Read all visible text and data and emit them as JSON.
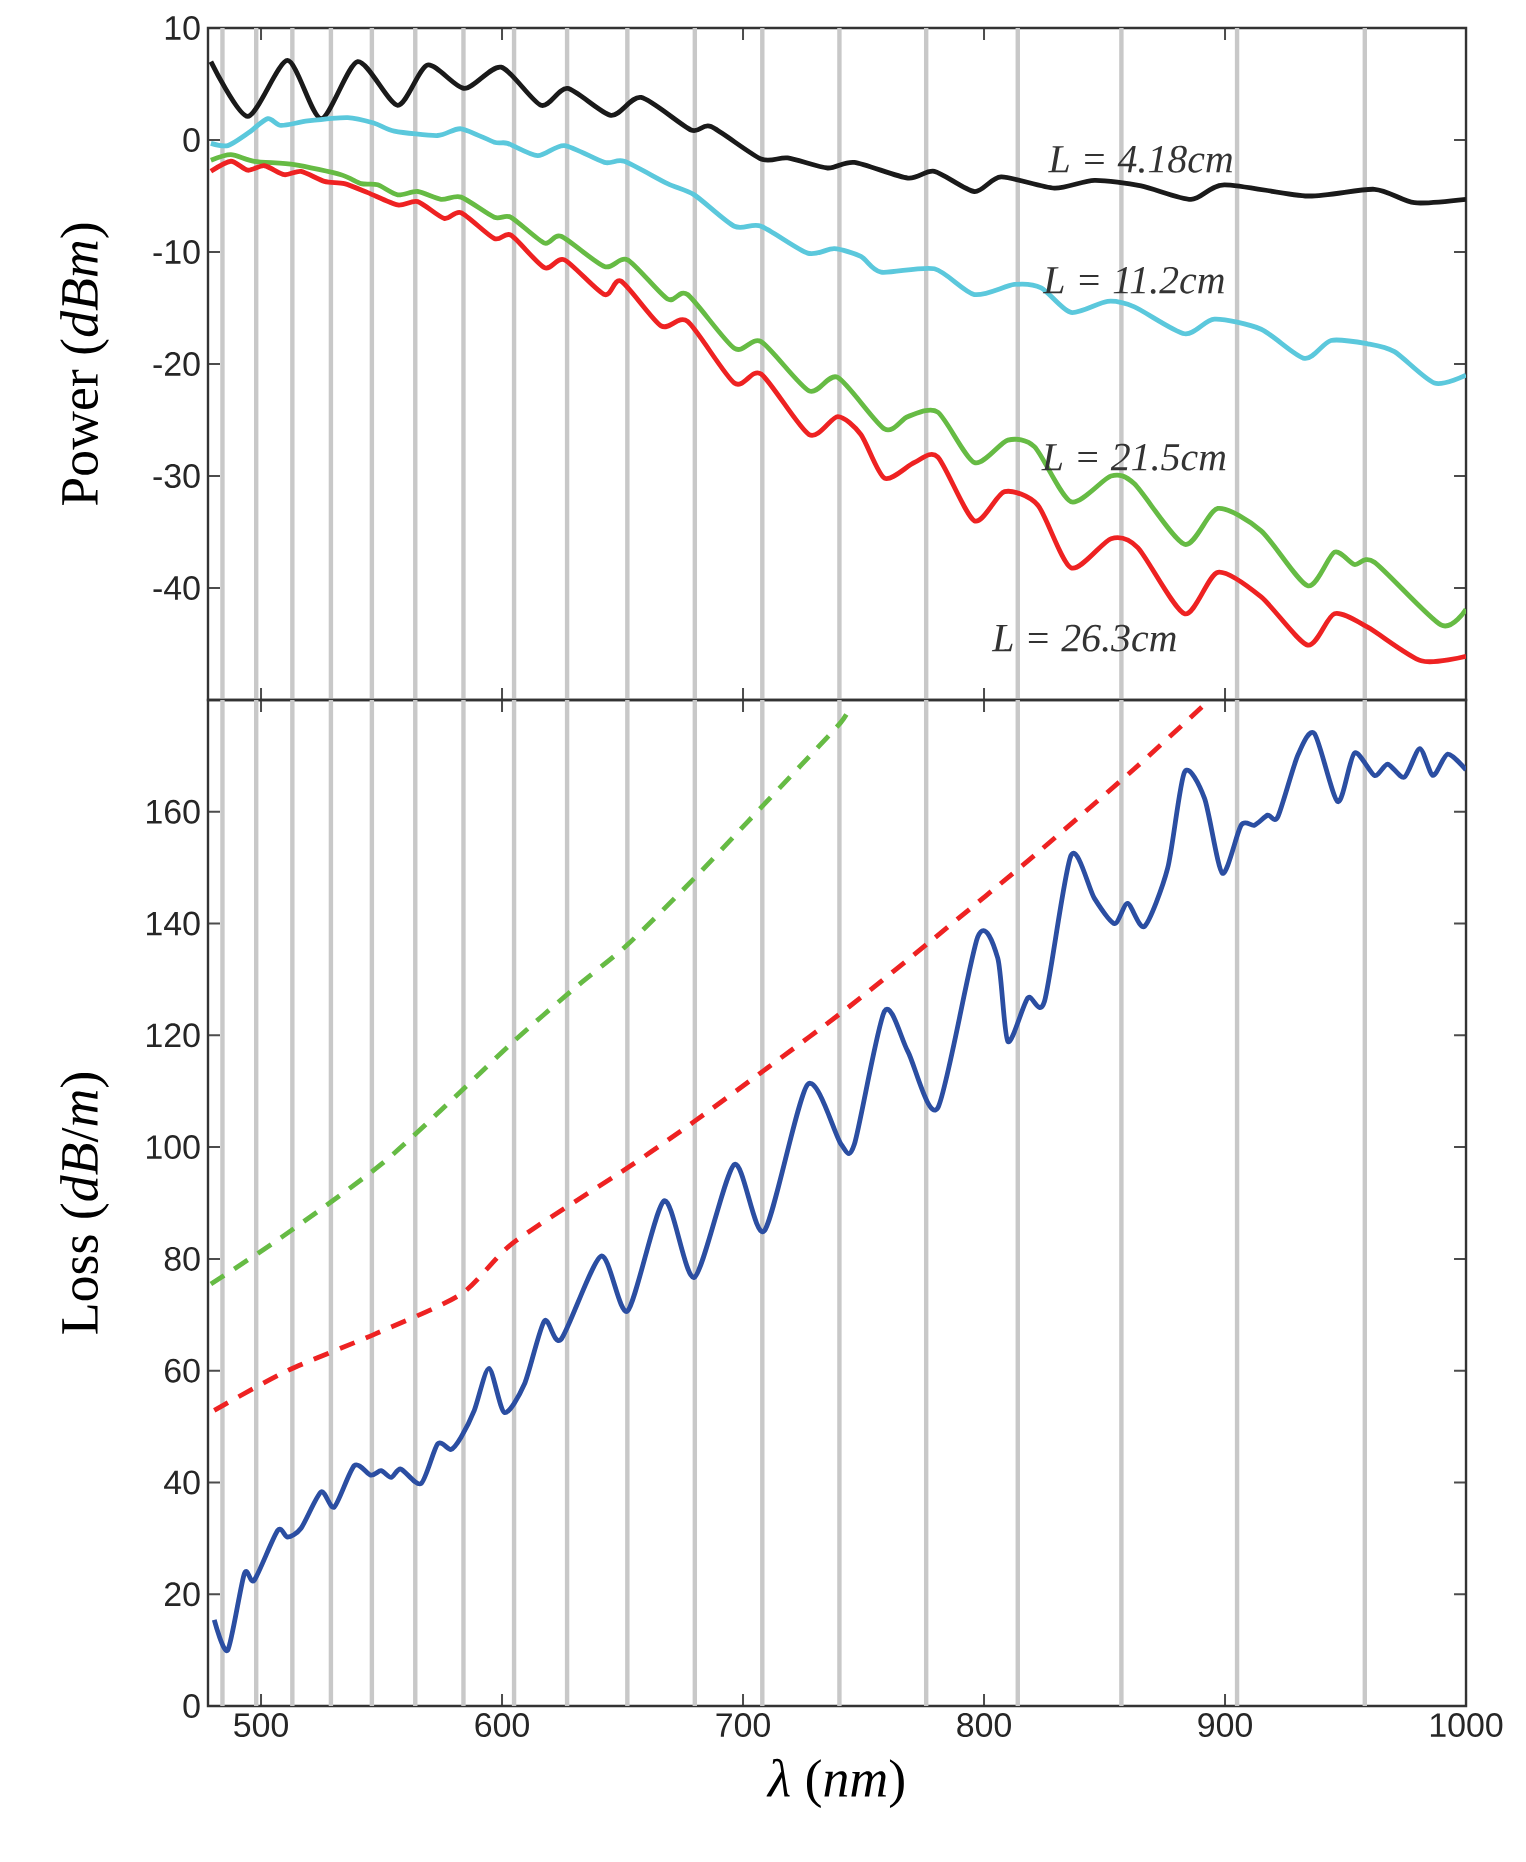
{
  "chart_data": [
    {
      "type": "line",
      "ylabel": "Power (*dBm*)",
      "xlim": [
        478,
        1000
      ],
      "xticks": [
        500,
        600,
        700,
        800,
        900,
        1000
      ],
      "ylim": [
        -50,
        10
      ],
      "yticks": [
        -40,
        -30,
        -20,
        -10,
        0,
        10
      ],
      "tick_labels": "y",
      "ref_lines": [
        {
          "axis": "x",
          "value": 484,
          "color": "#c8c8c8"
        },
        {
          "axis": "x",
          "value": 498,
          "color": "#c8c8c8"
        },
        {
          "axis": "x",
          "value": 513,
          "color": "#c8c8c8"
        },
        {
          "axis": "x",
          "value": 529,
          "color": "#c8c8c8"
        },
        {
          "axis": "x",
          "value": 546,
          "color": "#c8c8c8"
        },
        {
          "axis": "x",
          "value": 564,
          "color": "#c8c8c8"
        },
        {
          "axis": "x",
          "value": 584,
          "color": "#c8c8c8"
        },
        {
          "axis": "x",
          "value": 605,
          "color": "#c8c8c8"
        },
        {
          "axis": "x",
          "value": 627,
          "color": "#c8c8c8"
        },
        {
          "axis": "x",
          "value": 652,
          "color": "#c8c8c8"
        },
        {
          "axis": "x",
          "value": 680,
          "color": "#c8c8c8"
        },
        {
          "axis": "x",
          "value": 708,
          "color": "#c8c8c8"
        },
        {
          "axis": "x",
          "value": 740,
          "color": "#c8c8c8"
        },
        {
          "axis": "x",
          "value": 776,
          "color": "#c8c8c8"
        },
        {
          "axis": "x",
          "value": 814,
          "color": "#c8c8c8"
        },
        {
          "axis": "x",
          "value": 857,
          "color": "#c8c8c8"
        },
        {
          "axis": "x",
          "value": 905,
          "color": "#c8c8c8"
        },
        {
          "axis": "x",
          "value": 958,
          "color": "#c8c8c8"
        }
      ],
      "series": [
        {
          "name": "L = 4.18cm",
          "color": "#1a1a1a",
          "line_style": "solid",
          "x": [
            479.2,
            494.5,
            511,
            524.9,
            540.1,
            556.7,
            569.1,
            584.4,
            599.6,
            616.2,
            627.2,
            645.2,
            657.7,
            678.4,
            686.7,
            707.5,
            718.5,
            735.1,
            746.2,
            768.4,
            779.4,
            796,
            807.1,
            829.2,
            845.8,
            865.2,
            885.9,
            899.7,
            934.3,
            962,
            978.6,
            1000
          ],
          "values": [
            7.0,
            2.1,
            7.1,
            1.9,
            7.0,
            3.1,
            6.7,
            4.6,
            6.5,
            3.1,
            4.6,
            2.2,
            3.8,
            0.9,
            1.2,
            -1.7,
            -1.6,
            -2.5,
            -2.0,
            -3.4,
            -2.8,
            -4.6,
            -3.3,
            -4.3,
            -3.6,
            -4.1,
            -5.3,
            -4.0,
            -5.0,
            -4.4,
            -5.6,
            -5.3
          ]
        },
        {
          "name": "L = 11.2cm",
          "color": "#5bc8dc",
          "line_style": "solid",
          "x": [
            479.2,
            486.2,
            494.5,
            502.8,
            508.3,
            519.4,
            536,
            547,
            555.3,
            573.3,
            583,
            596.8,
            602.3,
            614.8,
            625.9,
            642.5,
            650.7,
            668.7,
            679.8,
            696.4,
            707.5,
            726.8,
            737.9,
            748.9,
            757.3,
            779.4,
            796,
            812.6,
            823.7,
            836.1,
            851.3,
            862.4,
            883.2,
            895.6,
            915,
            933,
            944,
            959.2,
            970.3,
            986.9,
            1000
          ],
          "values": [
            -0.3,
            -0.5,
            0.6,
            1.9,
            1.3,
            1.7,
            2.0,
            1.5,
            0.8,
            0.4,
            1.0,
            -0.2,
            -0.3,
            -1.4,
            -0.5,
            -2.0,
            -1.9,
            -3.9,
            -4.9,
            -7.7,
            -7.7,
            -10.1,
            -9.7,
            -10.4,
            -11.8,
            -11.5,
            -13.8,
            -12.9,
            -13.2,
            -15.4,
            -14.4,
            -14.9,
            -17.3,
            -16.0,
            -16.9,
            -19.5,
            -17.9,
            -18.2,
            -18.9,
            -21.7,
            -21.0
          ]
        },
        {
          "name": "L = 21.5cm",
          "color": "#66bb44",
          "line_style": "solid",
          "x": [
            479.2,
            487.5,
            497.2,
            513.8,
            533.2,
            541.5,
            548.4,
            556.7,
            565,
            574.7,
            583,
            596.8,
            603.7,
            617.6,
            624.5,
            642.5,
            652.1,
            668.7,
            677,
            696.4,
            707.5,
            727.4,
            739.3,
            758.7,
            768.4,
            780.8,
            796,
            809.9,
            821,
            836.1,
            852.7,
            862.4,
            883.2,
            897,
            915,
            934.3,
            945.4,
            953.7,
            962,
            989.6,
            1000
          ],
          "values": [
            -1.8,
            -1.3,
            -1.9,
            -2.2,
            -3.1,
            -3.9,
            -4.0,
            -4.9,
            -4.6,
            -5.3,
            -5.1,
            -6.9,
            -6.9,
            -9.2,
            -8.6,
            -11.3,
            -10.7,
            -14.2,
            -13.8,
            -18.6,
            -18.0,
            -22.4,
            -21.2,
            -25.8,
            -24.7,
            -24.3,
            -28.8,
            -26.8,
            -27.4,
            -32.3,
            -30.0,
            -30.7,
            -36.1,
            -32.9,
            -34.9,
            -39.8,
            -36.8,
            -37.9,
            -37.7,
            -43.3,
            -41.9
          ]
        },
        {
          "name": "L = 26.3cm",
          "color": "#ee2222",
          "line_style": "solid",
          "x": [
            479.2,
            487.5,
            494.5,
            501.4,
            509.7,
            516.6,
            526.3,
            534.6,
            544.3,
            556.7,
            565,
            576,
            583,
            596.8,
            603.7,
            617.6,
            625.9,
            642.5,
            649.4,
            666,
            677,
            696.4,
            707.5,
            727.4,
            739.3,
            748.9,
            758.7,
            771.1,
            780.8,
            796,
            808.5,
            822.3,
            836.1,
            852.7,
            863.8,
            883.2,
            897,
            915,
            934.3,
            945.4,
            959.2,
            981.4,
            1000
          ],
          "values": [
            -2.8,
            -1.9,
            -2.7,
            -2.3,
            -3.1,
            -2.8,
            -3.7,
            -3.9,
            -4.7,
            -5.8,
            -5.5,
            -7.0,
            -6.5,
            -8.8,
            -8.5,
            -11.4,
            -10.7,
            -13.8,
            -12.6,
            -16.6,
            -16.2,
            -21.7,
            -20.9,
            -26.3,
            -24.7,
            -26.3,
            -30.2,
            -28.8,
            -28.3,
            -34.0,
            -31.4,
            -32.6,
            -38.2,
            -35.6,
            -36.4,
            -42.3,
            -38.6,
            -40.8,
            -45.1,
            -42.3,
            -43.5,
            -46.5,
            -46.1
          ]
        }
      ]
    },
    {
      "type": "line",
      "xlabel": "*λ* (*nm*)",
      "ylabel": "Loss (*dB*/*m*)",
      "xlim": [
        478,
        1000
      ],
      "xticks": [
        500,
        600,
        700,
        800,
        900,
        1000
      ],
      "ylim": [
        0,
        180
      ],
      "yticks": [
        0,
        20,
        40,
        60,
        80,
        100,
        120,
        140,
        160
      ],
      "ref_lines": [
        {
          "axis": "x",
          "value": 484,
          "color": "#c8c8c8"
        },
        {
          "axis": "x",
          "value": 498,
          "color": "#c8c8c8"
        },
        {
          "axis": "x",
          "value": 513,
          "color": "#c8c8c8"
        },
        {
          "axis": "x",
          "value": 529,
          "color": "#c8c8c8"
        },
        {
          "axis": "x",
          "value": 546,
          "color": "#c8c8c8"
        },
        {
          "axis": "x",
          "value": 564,
          "color": "#c8c8c8"
        },
        {
          "axis": "x",
          "value": 584,
          "color": "#c8c8c8"
        },
        {
          "axis": "x",
          "value": 605,
          "color": "#c8c8c8"
        },
        {
          "axis": "x",
          "value": 627,
          "color": "#c8c8c8"
        },
        {
          "axis": "x",
          "value": 652,
          "color": "#c8c8c8"
        },
        {
          "axis": "x",
          "value": 680,
          "color": "#c8c8c8"
        },
        {
          "axis": "x",
          "value": 708,
          "color": "#c8c8c8"
        },
        {
          "axis": "x",
          "value": 740,
          "color": "#c8c8c8"
        },
        {
          "axis": "x",
          "value": 776,
          "color": "#c8c8c8"
        },
        {
          "axis": "x",
          "value": 814,
          "color": "#c8c8c8"
        },
        {
          "axis": "x",
          "value": 857,
          "color": "#c8c8c8"
        },
        {
          "axis": "x",
          "value": 905,
          "color": "#c8c8c8"
        },
        {
          "axis": "x",
          "value": 958,
          "color": "#c8c8c8"
        }
      ],
      "series": [
        {
          "color": "#66bb44",
          "line_style": "dashed",
          "x": [
            479.2,
            508.3,
            549.8,
            583,
            605,
            630,
            652,
            679.8,
            701.9,
            724,
            740.6,
            744.8
          ],
          "values": [
            75.5,
            83.8,
            96.9,
            110,
            119,
            128.4,
            136.2,
            148.1,
            158.2,
            168.3,
            176,
            179
          ]
        },
        {
          "color": "#ee2222",
          "line_style": "dashed",
          "x": [
            480.6,
            511,
            547,
            583,
            605,
            652.1,
            679.8,
            710.2,
            743.4,
            779.4,
            820.9,
            862.4,
            891
          ],
          "values": [
            52.9,
            60.0,
            66.5,
            73.7,
            83,
            96.3,
            104.6,
            114.2,
            124.9,
            137.4,
            152.2,
            167.7,
            179
          ]
        },
        {
          "color": "#2b4ea2",
          "line_style": "solid",
          "x": [
            480.6,
            486.2,
            493.1,
            497.2,
            506.9,
            511,
            516.6,
            524.9,
            530.4,
            538.7,
            545.6,
            549.8,
            554,
            558,
            566.4,
            573.3,
            578.8,
            583,
            588.5,
            594.6,
            601,
            609.3,
            617.6,
            624.5,
            641.1,
            652.1,
            667.3,
            679.8,
            696.4,
            708.8,
            726.8,
            740.7,
            746.2,
            758.7,
            768.4,
            780.8,
            797.4,
            805.7,
            809.9,
            818.2,
            825.1,
            836.1,
            845.8,
            854.1,
            859.6,
            866.6,
            876.2,
            883.2,
            891.5,
            898.9,
            906.7,
            912.2,
            917.7,
            921.9,
            930.2,
            937.1,
            946.8,
            953.7,
            962,
            967.5,
            974.4,
            980.8,
            986.3,
            992.4,
            1000
          ],
          "values": [
            15.4,
            10.0,
            23.7,
            22.5,
            31.4,
            30.2,
            31.8,
            38.3,
            35.6,
            43.0,
            41.3,
            42.1,
            40.9,
            42.4,
            39.8,
            46.9,
            45.9,
            48.1,
            52.9,
            60.4,
            52.5,
            57.6,
            68.9,
            65.6,
            80.5,
            70.7,
            90.4,
            76.7,
            96.9,
            85.0,
            111.2,
            100.5,
            100.5,
            124.3,
            117.1,
            107.0,
            137.6,
            133.8,
            118.9,
            126.7,
            126.1,
            152.2,
            144.5,
            140.0,
            143.6,
            139.5,
            149.9,
            167.1,
            162.4,
            149.0,
            157.6,
            157.6,
            159.4,
            159.1,
            170.1,
            174.0,
            161.8,
            170.5,
            166.5,
            168.5,
            166.2,
            171.3,
            166.5,
            170.3,
            167.5
          ]
        }
      ]
    }
  ]
}
